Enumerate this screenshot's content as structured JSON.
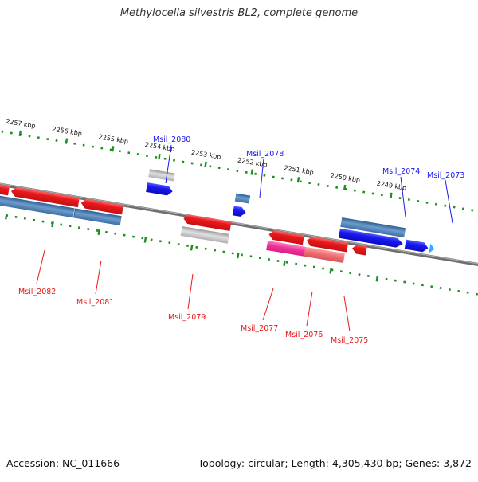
{
  "title": "Methylocella silvestris BL2, complete genome",
  "footer": {
    "accession": "Accession: NC_011666",
    "summary": "Topology: circular; Length: 4,305,430 bp; Genes: 3,872"
  },
  "colors": {
    "forward_cds": "#1a1af0",
    "reverse_cds": "#e8191c",
    "feature_steel": "#4a7fb5",
    "feature_grey": "#b4b4b4",
    "feature_pink": "#ee3399",
    "feature_salmon": "#f06f72",
    "tick_green": "#1e8f1e",
    "backbone": "#808080"
  },
  "ruler": {
    "upper_ticks": [
      "2257 kbp",
      "2256 kbp",
      "2255 kbp",
      "2254 kbp",
      "2253 kbp",
      "2252 kbp",
      "2251 kbp",
      "2250 kbp",
      "2249 kbp"
    ]
  },
  "genes": {
    "forward": [
      "Msil_2080",
      "Msil_2078",
      "Msil_2074",
      "Msil_2073"
    ],
    "reverse": [
      "Msil_2082",
      "Msil_2081",
      "Msil_2079",
      "Msil_2077",
      "Msil_2076",
      "Msil_2075"
    ]
  }
}
